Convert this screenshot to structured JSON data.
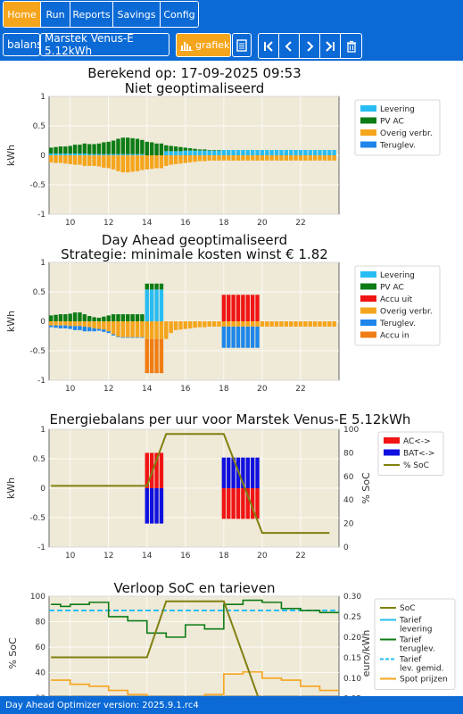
{
  "nav": {
    "items": [
      "Home",
      "Run",
      "Reports",
      "Savings",
      "Config"
    ],
    "active": "Home"
  },
  "toolbar": {
    "report_select": "balans",
    "device_select": "Marstek Venus-E 5.12kWh",
    "grafiek_label": "grafiek"
  },
  "icons": {
    "first": "first-page-icon",
    "prev": "chevron-left-icon",
    "next": "chevron-right-icon",
    "last": "last-page-icon",
    "delete": "trash-icon",
    "list": "list-icon",
    "chart": "bar-chart-icon"
  },
  "footer": {
    "version": "Day Ahead Optimizer version: 2025.9.1.rc4"
  },
  "chart_data": [
    {
      "type": "bar",
      "title": "Berekend op: 17-09-2025 09:53",
      "subtitle": "Niet geoptimaliseerd",
      "ylabel": "kWh",
      "ylim": [
        -1.0,
        1.0
      ],
      "yticks": [
        1.0,
        0.5,
        0.0,
        -0.5,
        -1.0
      ],
      "xticks": [
        10,
        12,
        14,
        16,
        18,
        20,
        22
      ],
      "x_start": 9.0,
      "x_step": 0.25,
      "legend": [
        "Levering",
        "PV AC",
        "Overig verbr.",
        "Teruglev."
      ],
      "colors": {
        "Levering": "#27bdf2",
        "PV AC": "#0d7c15",
        "Overig verbr.": "#f5a51c",
        "Teruglev.": "#1e86ea"
      },
      "series": [
        {
          "name": "Levering",
          "values": [
            0.03,
            0.03,
            0.03,
            0.03,
            0.03,
            0.03,
            0.03,
            0.03,
            0.02,
            0.02,
            0.02,
            0.02,
            0.02,
            0.02,
            0.02,
            0.02,
            0.02,
            0.02,
            0.02,
            0.02,
            0.0,
            0.0,
            0.0,
            0.0,
            0.07,
            0.07,
            0.07,
            0.07,
            0.08,
            0.08,
            0.08,
            0.08,
            0.08,
            0.08,
            0.08,
            0.08,
            0.09,
            0.09,
            0.09,
            0.09,
            0.09,
            0.09,
            0.09,
            0.09,
            0.09,
            0.09,
            0.09,
            0.09,
            0.09,
            0.09,
            0.09,
            0.09,
            0.09,
            0.09,
            0.09,
            0.09,
            0.09,
            0.09,
            0.09,
            0.09
          ]
        },
        {
          "name": "PV AC",
          "values": [
            0.1,
            0.11,
            0.12,
            0.12,
            0.13,
            0.15,
            0.15,
            0.17,
            0.17,
            0.17,
            0.18,
            0.2,
            0.21,
            0.23,
            0.26,
            0.28,
            0.28,
            0.27,
            0.26,
            0.24,
            0.23,
            0.22,
            0.2,
            0.2,
            0.1,
            0.09,
            0.08,
            0.07,
            0.05,
            0.04,
            0.03,
            0.02,
            0.02,
            0.01,
            0.01,
            0.01,
            0.0,
            0.0,
            0.0,
            0.0,
            0.0,
            0.0,
            0.0,
            0.0,
            0.0,
            0.0,
            0.0,
            0.0,
            0.0,
            0.0,
            0.0,
            0.0,
            0.0,
            0.0,
            0.0,
            0.0,
            0.0,
            0.0,
            0.0,
            0.0
          ]
        },
        {
          "name": "Overig verbr.",
          "values": [
            -0.12,
            -0.13,
            -0.13,
            -0.14,
            -0.15,
            -0.16,
            -0.16,
            -0.18,
            -0.18,
            -0.18,
            -0.19,
            -0.21,
            -0.22,
            -0.24,
            -0.27,
            -0.29,
            -0.29,
            -0.28,
            -0.27,
            -0.25,
            -0.24,
            -0.23,
            -0.22,
            -0.22,
            -0.18,
            -0.16,
            -0.15,
            -0.14,
            -0.13,
            -0.12,
            -0.11,
            -0.1,
            -0.1,
            -0.09,
            -0.09,
            -0.09,
            -0.09,
            -0.09,
            -0.09,
            -0.09,
            -0.09,
            -0.09,
            -0.09,
            -0.09,
            -0.09,
            -0.09,
            -0.09,
            -0.09,
            -0.09,
            -0.09,
            -0.09,
            -0.09,
            -0.09,
            -0.09,
            -0.09,
            -0.09,
            -0.09,
            -0.09,
            -0.09,
            -0.09
          ]
        },
        {
          "name": "Teruglev.",
          "values": [
            0.0,
            0.0,
            0.0,
            0.0,
            0.0,
            0.0,
            0.0,
            0.0,
            0.0,
            0.0,
            0.0,
            0.0,
            0.0,
            0.0,
            0.0,
            0.0,
            0.0,
            0.0,
            0.0,
            0.0,
            0.0,
            0.0,
            0.0,
            0.0,
            0.0,
            0.0,
            0.0,
            0.0,
            0.0,
            0.0,
            0.0,
            0.0,
            0.0,
            0.0,
            0.0,
            0.0,
            0.0,
            0.0,
            0.0,
            0.0,
            0.0,
            0.0,
            0.0,
            0.0,
            0.0,
            0.0,
            0.0,
            0.0,
            0.0,
            0.0,
            0.0,
            0.0,
            0.0,
            0.0,
            0.0,
            0.0,
            0.0,
            0.0,
            0.0,
            0.0
          ]
        }
      ]
    },
    {
      "type": "bar",
      "title": "Day Ahead geoptimaliseerd",
      "subtitle": "Strategie: minimale kosten winst € 1.82",
      "ylabel": "kWh",
      "ylim": [
        -1.0,
        1.0
      ],
      "yticks": [
        1.0,
        0.5,
        0.0,
        -0.5,
        -1.0
      ],
      "xticks": [
        10,
        12,
        14,
        16,
        18,
        20,
        22
      ],
      "x_start": 9.0,
      "x_step": 0.25,
      "legend": [
        "Levering",
        "PV AC",
        "Accu uit",
        "Overig verbr.",
        "Teruglev.",
        "Accu in"
      ],
      "colors": {
        "Levering": "#27bdf2",
        "PV AC": "#0d7c15",
        "Accu uit": "#f01414",
        "Overig verbr.": "#f5a51c",
        "Teruglev.": "#1e86ea",
        "Accu in": "#f07d14"
      },
      "series": [
        {
          "name": "Levering",
          "values": [
            0,
            0,
            0,
            0,
            0,
            0,
            0,
            0,
            0,
            0,
            0,
            0,
            0,
            0,
            0,
            0,
            0,
            0,
            0,
            0,
            0.54,
            0.54,
            0.54,
            0.54,
            0.0,
            0,
            0,
            0,
            0,
            0,
            0,
            0,
            0,
            0,
            0,
            0,
            0,
            0,
            0,
            0,
            0,
            0,
            0,
            0,
            0,
            0,
            0,
            0,
            0,
            0,
            0,
            0,
            0,
            0,
            0,
            0,
            0,
            0,
            0,
            0
          ]
        },
        {
          "name": "PV AC",
          "values": [
            0.1,
            0.11,
            0.12,
            0.12,
            0.13,
            0.15,
            0.15,
            0.12,
            0.09,
            0.07,
            0.06,
            0.08,
            0.1,
            0.12,
            0.12,
            0.12,
            0.12,
            0.12,
            0.12,
            0.12,
            0.1,
            0.1,
            0.1,
            0.1,
            0,
            0,
            0,
            0,
            0,
            0,
            0,
            0,
            0,
            0,
            0,
            0,
            0,
            0,
            0,
            0,
            0,
            0,
            0,
            0,
            0,
            0,
            0,
            0,
            0,
            0,
            0,
            0,
            0,
            0,
            0,
            0,
            0,
            0,
            0,
            0
          ]
        },
        {
          "name": "Accu uit",
          "values": [
            0,
            0,
            0,
            0,
            0,
            0,
            0,
            0,
            0,
            0,
            0,
            0,
            0,
            0,
            0,
            0,
            0,
            0,
            0,
            0,
            0,
            0,
            0,
            0,
            0,
            0,
            0,
            0,
            0,
            0,
            0,
            0,
            0,
            0,
            0,
            0,
            0.45,
            0.45,
            0.45,
            0.45,
            0.45,
            0.45,
            0.45,
            0.45,
            0,
            0,
            0,
            0,
            0,
            0,
            0,
            0,
            0,
            0,
            0,
            0,
            0,
            0,
            0,
            0
          ]
        },
        {
          "name": "Overig verbr.",
          "values": [
            -0.07,
            -0.07,
            -0.07,
            -0.07,
            -0.08,
            -0.08,
            -0.08,
            -0.09,
            -0.1,
            -0.12,
            -0.13,
            -0.14,
            -0.17,
            -0.22,
            -0.26,
            -0.27,
            -0.27,
            -0.27,
            -0.27,
            -0.27,
            -0.3,
            -0.3,
            -0.3,
            -0.3,
            -0.3,
            -0.2,
            -0.15,
            -0.14,
            -0.13,
            -0.12,
            -0.11,
            -0.1,
            -0.1,
            -0.09,
            -0.09,
            -0.09,
            -0.09,
            -0.09,
            -0.09,
            -0.09,
            -0.09,
            -0.09,
            -0.09,
            -0.09,
            -0.09,
            -0.09,
            -0.09,
            -0.09,
            -0.09,
            -0.09,
            -0.09,
            -0.09,
            -0.09,
            -0.09,
            -0.09,
            -0.09,
            -0.09,
            -0.09,
            -0.09,
            -0.09
          ]
        },
        {
          "name": "Teruglev.",
          "values": [
            -0.03,
            -0.04,
            -0.05,
            -0.05,
            -0.05,
            -0.07,
            -0.07,
            -0.08,
            -0.07,
            -0.05,
            -0.03,
            -0.04,
            -0.03,
            -0.02,
            -0.01,
            -0.01,
            -0.01,
            -0.01,
            -0.01,
            -0.01,
            0,
            0,
            0,
            0,
            0,
            0,
            0,
            0,
            0,
            0,
            0,
            0,
            0,
            0,
            0,
            0,
            -0.36,
            -0.36,
            -0.36,
            -0.36,
            -0.36,
            -0.36,
            -0.36,
            -0.36,
            0,
            0,
            0,
            0,
            0,
            0,
            0,
            0,
            0,
            0,
            0,
            0,
            0,
            0,
            0,
            0
          ]
        },
        {
          "name": "Accu in",
          "values": [
            0,
            0,
            0,
            0,
            0,
            0,
            0,
            0,
            0,
            0,
            0,
            0,
            0,
            0,
            0,
            0,
            0,
            0,
            0,
            0,
            -0.58,
            -0.58,
            -0.58,
            -0.58,
            0,
            0,
            0,
            0,
            0,
            0,
            0,
            0,
            0,
            0,
            0,
            0,
            0,
            0,
            0,
            0,
            0,
            0,
            0,
            0,
            0,
            0,
            0,
            0,
            0,
            0,
            0,
            0,
            0,
            0,
            0,
            0,
            0,
            0,
            0,
            0
          ]
        }
      ]
    },
    {
      "type": "bar",
      "title": "Energiebalans per uur voor Marstek Venus-E 5.12kWh",
      "ylabel": "kWh",
      "y2label": "% SoC",
      "ylim": [
        -1.0,
        1.0
      ],
      "y2lim": [
        0,
        100
      ],
      "yticks": [
        1.0,
        0.5,
        0.0,
        -0.5,
        -1.0
      ],
      "y2ticks": [
        100,
        80,
        60,
        40,
        20,
        0
      ],
      "xticks": [
        10,
        12,
        14,
        16,
        18,
        20,
        22
      ],
      "legend": [
        "AC<->",
        "BAT<->",
        "% SoC"
      ],
      "colors": {
        "AC<->": "#f01414",
        "BAT<->": "#1010e0",
        "% SoC": "#808010"
      },
      "bars": [
        {
          "x": 14.0,
          "ac": 0.6,
          "bat": -0.6
        },
        {
          "x": 14.25,
          "ac": 0.6,
          "bat": -0.6
        },
        {
          "x": 14.5,
          "ac": 0.6,
          "bat": -0.6
        },
        {
          "x": 14.75,
          "ac": 0.6,
          "bat": -0.6
        },
        {
          "x": 18.0,
          "ac": -0.52,
          "bat": 0.52
        },
        {
          "x": 18.25,
          "ac": -0.52,
          "bat": 0.52
        },
        {
          "x": 18.5,
          "ac": -0.52,
          "bat": 0.52
        },
        {
          "x": 18.75,
          "ac": -0.52,
          "bat": 0.52
        },
        {
          "x": 19.0,
          "ac": -0.52,
          "bat": 0.52
        },
        {
          "x": 19.25,
          "ac": -0.52,
          "bat": 0.52
        },
        {
          "x": 19.5,
          "ac": -0.52,
          "bat": 0.52
        },
        {
          "x": 19.75,
          "ac": -0.52,
          "bat": 0.52
        }
      ],
      "soc": {
        "x": [
          9.0,
          14.0,
          15.0,
          18.0,
          20.0,
          23.5
        ],
        "y": [
          52,
          52,
          96,
          96,
          12,
          12
        ]
      }
    },
    {
      "type": "line",
      "title": "Verloop SoC en tarieven",
      "ylabel": "% SoC",
      "y2label": "euro/kWh",
      "ylim": [
        18,
        100
      ],
      "y2lim": [
        0.045,
        0.3
      ],
      "yticks": [
        100,
        80,
        60,
        40,
        20
      ],
      "y2ticks": [
        0.3,
        0.25,
        0.2,
        0.15,
        0.1,
        0.05
      ],
      "legend": [
        "SoC",
        "Tarief levering",
        "Tarief teruglev.",
        "Tarief lev. gemid.",
        "Spot prijzen"
      ],
      "colors": {
        "SoC": "#808010",
        "Tarief levering": "#27bdf2",
        "Tarief teruglev.": "#0d7c15",
        "Tarief lev. gemid.": "#27bdf2",
        "Spot prijzen": "#f5a51c"
      },
      "soc": {
        "x": [
          9.0,
          14.0,
          15.0,
          18.0,
          20.0,
          23.5
        ],
        "y": [
          52,
          52,
          96,
          96,
          12,
          12
        ]
      },
      "tarief_teruglev": {
        "x": [
          9,
          9.5,
          10,
          11,
          12,
          13,
          14,
          15,
          16,
          17,
          18,
          19,
          20,
          21,
          22,
          23,
          24
        ],
        "y": [
          0.28,
          0.275,
          0.28,
          0.285,
          0.25,
          0.24,
          0.21,
          0.2,
          0.23,
          0.22,
          0.28,
          0.29,
          0.285,
          0.27,
          0.265,
          0.26,
          0.26
        ]
      },
      "tarief_lev_gemid": 0.265,
      "spot": {
        "x": [
          9,
          10,
          11,
          12,
          13,
          14,
          15,
          16,
          17,
          18,
          19,
          20,
          21,
          22,
          23,
          24
        ],
        "y": [
          0.095,
          0.085,
          0.08,
          0.07,
          0.06,
          0.045,
          0.045,
          0.05,
          0.06,
          0.11,
          0.115,
          0.1,
          0.095,
          0.08,
          0.07,
          0.07
        ]
      }
    }
  ]
}
